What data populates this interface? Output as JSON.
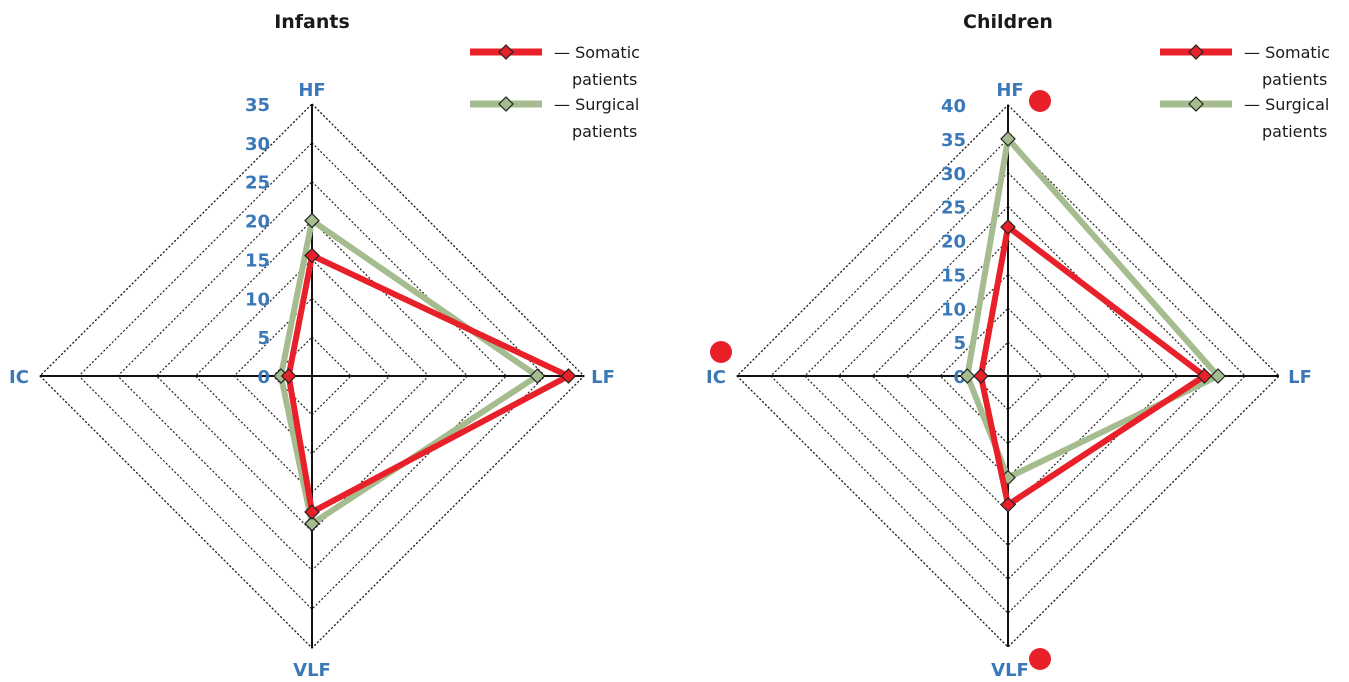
{
  "chart_data": [
    {
      "type": "radar",
      "title": "Infants",
      "axes": [
        "HF",
        "LF",
        "VLF",
        "IC"
      ],
      "ticks": [
        "0",
        "5",
        "10",
        "15",
        "20",
        "25",
        "30",
        "35"
      ],
      "rmax": 35,
      "series": [
        {
          "name": "Somatic patients",
          "values": [
            15.5,
            33,
            17.5,
            3
          ],
          "color": "#e8202a"
        },
        {
          "name": "Surgical patients",
          "values": [
            20,
            29,
            19,
            4
          ],
          "color": "#a5bd8e"
        }
      ],
      "legend": [
        {
          "line1": "— Somatic",
          "line2": "patients"
        },
        {
          "line1": "— Surgical",
          "line2": "patients"
        }
      ],
      "legend_placement": "top-right",
      "grid": true
    },
    {
      "type": "radar",
      "title": "Children",
      "axes": [
        "HF",
        "LF",
        "VLF",
        "IC"
      ],
      "ticks": [
        "0",
        "5",
        "10",
        "15",
        "20",
        "25",
        "30",
        "35",
        "40"
      ],
      "rmax": 40,
      "series": [
        {
          "name": "Somatic patients",
          "values": [
            22,
            29,
            19,
            4
          ],
          "color": "#e8202a"
        },
        {
          "name": "Surgical patients",
          "values": [
            35,
            31,
            15,
            6
          ],
          "color": "#a5bd8e"
        }
      ],
      "legend": [
        {
          "line1": "— Somatic",
          "line2": "patients"
        },
        {
          "line1": "— Surgical",
          "line2": "patients"
        }
      ],
      "legend_placement": "top-right",
      "grid": true,
      "markers": [
        {
          "axis": "HF",
          "color": "#e8202a"
        },
        {
          "axis": "IC",
          "color": "#e8202a"
        },
        {
          "axis": "VLF",
          "color": "#e8202a"
        }
      ]
    }
  ]
}
